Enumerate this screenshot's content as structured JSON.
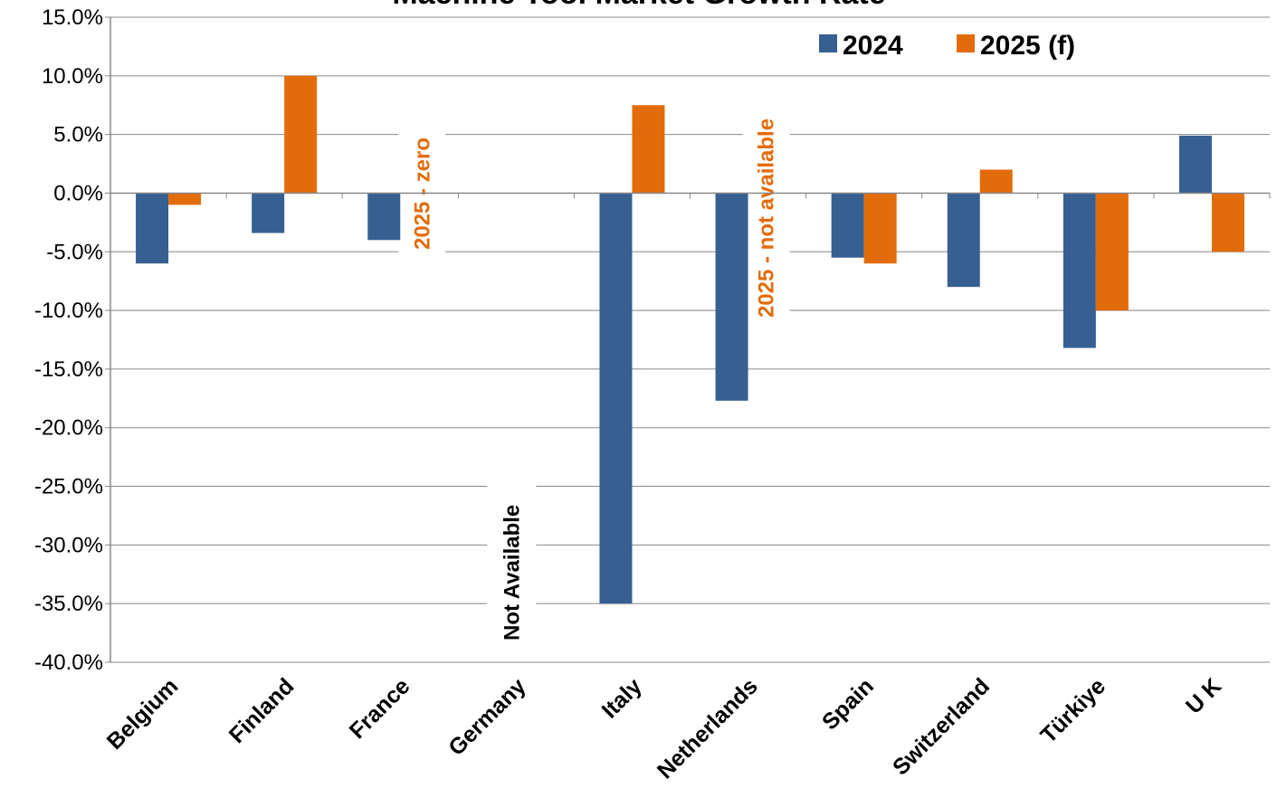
{
  "chart_data": {
    "type": "bar",
    "title": "Machine Tool Market Growth Rate",
    "categories": [
      "Belgium",
      "Finland",
      "France",
      "Germany",
      "Italy",
      "Netherlands",
      "Spain",
      "Switzerland",
      "Türkiye",
      "U K"
    ],
    "series": [
      {
        "name": "2024",
        "color": "#376092",
        "values": [
          -6.0,
          -3.4,
          -4.0,
          null,
          -35.0,
          -17.7,
          -5.5,
          -8.0,
          -13.2,
          4.9
        ]
      },
      {
        "name": "2025 (f)",
        "color": "#E36C0A",
        "values": [
          -1.0,
          10.0,
          0.0,
          null,
          7.5,
          null,
          -6.0,
          2.0,
          -10.0,
          -5.0
        ]
      }
    ],
    "ylim": [
      -40,
      15
    ],
    "ytick_step": 5,
    "ytick_labels": [
      "15.0%",
      "10.0%",
      "5.0%",
      "0.0%",
      "-5.0%",
      "-10.0%",
      "-15.0%",
      "-20.0%",
      "-25.0%",
      "-30.0%",
      "-35.0%",
      "-40.0%"
    ],
    "grid": true,
    "legend_position": "top-right",
    "annotations": [
      {
        "text": "2025 - zero",
        "category": "France",
        "color": "#E36C0A"
      },
      {
        "text": "Not Available",
        "category": "Germany",
        "color": "#000000"
      },
      {
        "text": "2025 - not available",
        "category": "Netherlands",
        "color": "#E36C0A"
      }
    ]
  }
}
